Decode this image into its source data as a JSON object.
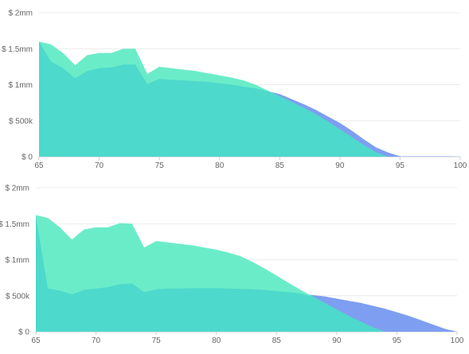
{
  "chart_data": [
    {
      "type": "area",
      "title": "",
      "xlabel": "",
      "ylabel": "",
      "xlim": [
        65,
        100
      ],
      "ylim": [
        0,
        2000000
      ],
      "x_ticks": [
        "65",
        "70",
        "75",
        "80",
        "85",
        "90",
        "95",
        "100"
      ],
      "y_ticks": [
        "$ 0",
        "$ 500k",
        "$ 1mm",
        "$ 1.5mm",
        "$ 2mm"
      ],
      "grid": true,
      "legend": "none",
      "series": [
        {
          "color": "#7e9ef1",
          "x": [
            65,
            66,
            67,
            68,
            69,
            70,
            71,
            72,
            73,
            74,
            75,
            76,
            77,
            78,
            79,
            80,
            81,
            82,
            83,
            84,
            85,
            86,
            87,
            88,
            89,
            90,
            91,
            92,
            93,
            94,
            95,
            96,
            97,
            98,
            99,
            100
          ],
          "values": [
            1600000,
            1320000,
            1230000,
            1090000,
            1190000,
            1230000,
            1240000,
            1280000,
            1280000,
            1010000,
            1080000,
            1070000,
            1060000,
            1050000,
            1040000,
            1020000,
            1000000,
            975000,
            950000,
            910000,
            870000,
            800000,
            730000,
            650000,
            560000,
            470000,
            360000,
            240000,
            130000,
            60000,
            5000,
            5000,
            5000,
            5000,
            5000,
            0
          ]
        },
        {
          "color": "#6becc8",
          "x": [
            65,
            66,
            67,
            68,
            69,
            70,
            71,
            72,
            73,
            74,
            75,
            76,
            77,
            78,
            79,
            80,
            81,
            82,
            83,
            84,
            85,
            86,
            87,
            88,
            89,
            90,
            91,
            92,
            93,
            94
          ],
          "values": [
            1600000,
            1560000,
            1440000,
            1270000,
            1410000,
            1440000,
            1440000,
            1500000,
            1500000,
            1150000,
            1250000,
            1230000,
            1210000,
            1190000,
            1160000,
            1130000,
            1100000,
            1060000,
            1000000,
            920000,
            840000,
            760000,
            680000,
            590000,
            490000,
            380000,
            270000,
            160000,
            60000,
            0
          ]
        },
        {
          "color": "#4dd9cb",
          "x": [
            65,
            66,
            67,
            68,
            69,
            70,
            71,
            72,
            73,
            74,
            75,
            76,
            77,
            78,
            79,
            80,
            81,
            82,
            83,
            84,
            85,
            86,
            87,
            88,
            89,
            90,
            91,
            92,
            93,
            94
          ],
          "values": [
            1600000,
            1320000,
            1230000,
            1090000,
            1190000,
            1230000,
            1240000,
            1280000,
            1280000,
            1010000,
            1080000,
            1070000,
            1060000,
            1050000,
            1040000,
            1020000,
            1000000,
            975000,
            950000,
            910000,
            840000,
            760000,
            680000,
            590000,
            490000,
            380000,
            270000,
            160000,
            60000,
            0
          ]
        }
      ]
    },
    {
      "type": "area",
      "title": "",
      "xlabel": "",
      "ylabel": "",
      "xlim": [
        65,
        100
      ],
      "ylim": [
        0,
        2000000
      ],
      "x_ticks": [
        "65",
        "70",
        "75",
        "80",
        "85",
        "90",
        "95",
        "100"
      ],
      "y_ticks": [
        "$ 0",
        "$ 500k",
        "$ 1mm",
        "$ 1.5mm",
        "$ 2mm"
      ],
      "grid": true,
      "legend": "none",
      "series": [
        {
          "color": "#7e9ef1",
          "x": [
            65,
            66,
            67,
            68,
            69,
            70,
            71,
            72,
            73,
            74,
            75,
            76,
            77,
            78,
            79,
            80,
            81,
            82,
            83,
            84,
            85,
            86,
            87,
            88,
            89,
            90,
            91,
            92,
            93,
            94,
            95,
            96,
            97,
            98,
            99,
            100
          ],
          "values": [
            1600000,
            600000,
            570000,
            520000,
            580000,
            600000,
            620000,
            660000,
            670000,
            550000,
            590000,
            600000,
            600000,
            605000,
            605000,
            605000,
            600000,
            595000,
            590000,
            580000,
            565000,
            550000,
            530000,
            510000,
            490000,
            460000,
            430000,
            400000,
            360000,
            320000,
            270000,
            220000,
            160000,
            100000,
            40000,
            0
          ]
        },
        {
          "color": "#6becc8",
          "x": [
            65,
            66,
            67,
            68,
            69,
            70,
            71,
            72,
            73,
            74,
            75,
            76,
            77,
            78,
            79,
            80,
            81,
            82,
            83,
            84,
            85,
            86,
            87,
            88,
            89,
            90,
            91,
            92,
            93,
            94
          ],
          "values": [
            1620000,
            1580000,
            1450000,
            1280000,
            1420000,
            1450000,
            1450000,
            1510000,
            1500000,
            1170000,
            1260000,
            1240000,
            1220000,
            1200000,
            1170000,
            1140000,
            1100000,
            1050000,
            970000,
            880000,
            780000,
            680000,
            580000,
            490000,
            400000,
            310000,
            220000,
            140000,
            60000,
            0
          ]
        },
        {
          "color": "#4dd9cb",
          "x": [
            65,
            66,
            67,
            68,
            69,
            70,
            71,
            72,
            73,
            74,
            75,
            76,
            77,
            78,
            79,
            80,
            81,
            82,
            83,
            84,
            85,
            86,
            87,
            88,
            89,
            90,
            91,
            92,
            93,
            94
          ],
          "values": [
            1600000,
            600000,
            570000,
            520000,
            580000,
            600000,
            620000,
            660000,
            670000,
            550000,
            590000,
            600000,
            600000,
            605000,
            605000,
            605000,
            600000,
            595000,
            590000,
            580000,
            565000,
            550000,
            530000,
            490000,
            400000,
            310000,
            220000,
            140000,
            60000,
            0
          ]
        }
      ]
    }
  ]
}
